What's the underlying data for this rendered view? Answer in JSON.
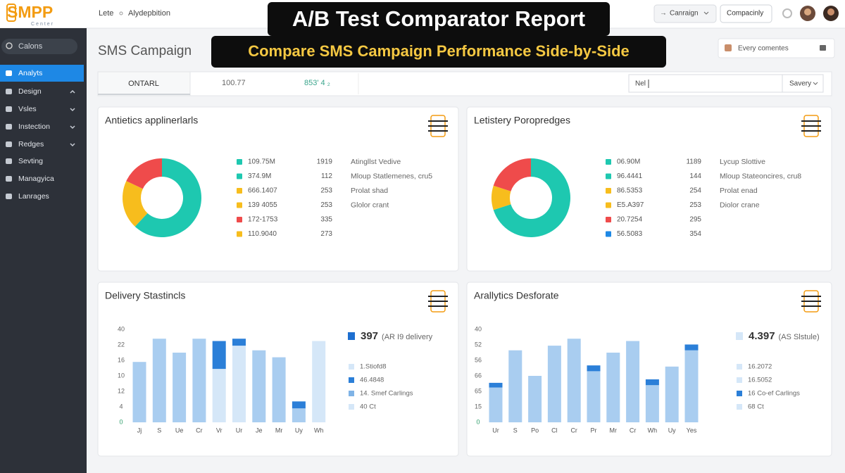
{
  "header": {
    "logo": "SMPP",
    "logo_sub": "Center",
    "breadcrumb": [
      "Lete",
      "Alydepbition"
    ],
    "buttons": [
      "Canraign",
      "Compacinly"
    ]
  },
  "banner": {
    "title": "A/B Test Comparator Report",
    "subtitle": "Compare SMS Campaign Performance Side-by-Side"
  },
  "sidebar": {
    "search": "Calons",
    "items": [
      "Analyts",
      "Design",
      "Vsles",
      "Instection",
      "Redges",
      "Sevting",
      "Managyica",
      "Lanrages"
    ]
  },
  "page": {
    "title": "SMS Campaign",
    "notice": "Every comentes"
  },
  "tabs": {
    "active": "ONTARL",
    "values": [
      "100.77",
      "853' 4 ₂"
    ],
    "input": "Nel",
    "select": "Savery"
  },
  "panels": [
    {
      "title": "Antietics applinerlarls",
      "chart": {
        "type": "donut",
        "values": [
          62,
          20,
          18
        ],
        "colors": [
          "#1ec8b0",
          "#f7bd1d",
          "#ef4b4b"
        ]
      },
      "legend": [
        {
          "color": "#1ec8b0",
          "label": "109.75M",
          "count": "1919"
        },
        {
          "color": "#1ec8b0",
          "label": "374.9M",
          "count": "112"
        },
        {
          "color": "#f7bd1d",
          "label": "666.1407",
          "count": "253"
        },
        {
          "color": "#f7bd1d",
          "label": "139 4055",
          "count": "253"
        },
        {
          "color": "#ef4b4b",
          "label": "172-1753",
          "count": "335"
        },
        {
          "color": "#f7bd1d",
          "label": "110.9040",
          "count": "273"
        }
      ],
      "notes": [
        "Atingllst Vedive",
        "Mloup Statlemenes, cru5",
        "Prolat shad",
        "Glolor crant"
      ]
    },
    {
      "title": "Letistery Poropredges",
      "chart": {
        "type": "donut",
        "values": [
          70,
          10,
          20
        ],
        "colors": [
          "#1ec8b0",
          "#f7bd1d",
          "#ef4b4b"
        ]
      },
      "legend": [
        {
          "color": "#1ec8b0",
          "label": "06.90M",
          "count": "1189"
        },
        {
          "color": "#1ec8b0",
          "label": "96.4441",
          "count": "144"
        },
        {
          "color": "#f7bd1d",
          "label": "86.5353",
          "count": "254"
        },
        {
          "color": "#f7bd1d",
          "label": "E5.A397",
          "count": "253"
        },
        {
          "color": "#ef4b4b",
          "label": "20.7254",
          "count": "295"
        },
        {
          "color": "#1e88e5",
          "label": "56.5083",
          "count": "354"
        }
      ],
      "notes": [
        "Lycup Slottive",
        "Mloup Stateoncires, cru8",
        "Prolat enad",
        "Diolor crane"
      ]
    },
    {
      "title": "Delivery Stastincls",
      "chart": {
        "type": "bar",
        "ylim": [
          0,
          40
        ],
        "y_labels": [
          "40",
          "22",
          "16",
          "10",
          "12",
          "4",
          "0"
        ],
        "categories": [
          "Jj",
          "S",
          "Ue",
          "Cr",
          "Vr",
          "Ur",
          "Je",
          "Mr",
          "Uy",
          "Wh"
        ],
        "series": [
          {
            "color": "#a9cdf0",
            "values": [
              26,
              36,
              30,
              36,
              null,
              null,
              31,
              28,
              6,
              null
            ]
          },
          {
            "color": "#d5e7f8",
            "values": [
              null,
              null,
              null,
              null,
              23,
              33,
              null,
              null,
              null,
              35
            ]
          },
          {
            "color": "#2b7fd8",
            "values": [
              null,
              null,
              null,
              null,
              12,
              3,
              null,
              null,
              3,
              null
            ]
          }
        ]
      },
      "summary": {
        "value": "397",
        "label": "(AR I9 delivery"
      },
      "legend": [
        {
          "color": "#d5e7f8",
          "label": "1.Stiofd8"
        },
        {
          "color": "#2b7fd8",
          "label": "46.4848"
        },
        {
          "color": "#7fb3e6",
          "label": "14. Smef Carlings"
        },
        {
          "color": "#d5e7f8",
          "label": "40 Ct"
        }
      ]
    },
    {
      "title": "Arallytics Desforate",
      "chart": {
        "type": "bar",
        "ylim": [
          0,
          40
        ],
        "y_labels": [
          "40",
          "52",
          "56",
          "66",
          "65",
          "15",
          "0"
        ],
        "categories": [
          "Ur",
          "S",
          "Po",
          "Cl",
          "Cr",
          "Pr",
          "Mr",
          "Cr",
          "Wh",
          "Uy",
          "Yes"
        ],
        "series": [
          {
            "color": "#a9cdf0",
            "values": [
              15,
              31,
              20,
              33,
              36,
              22,
              30,
              35,
              16,
              24,
              31
            ]
          },
          {
            "color": "#2b7fd8",
            "values": [
              2,
              null,
              null,
              null,
              null,
              2.5,
              null,
              null,
              2.5,
              null,
              2.5
            ]
          }
        ]
      },
      "summary": {
        "value": "4.397",
        "label": "(AS Slstule)"
      },
      "legend": [
        {
          "color": "#d5e7f8",
          "label": "16.2072"
        },
        {
          "color": "#d5e7f8",
          "label": "16.5052"
        },
        {
          "color": "#2b7fd8",
          "label": "16 Co-ef Carlings"
        },
        {
          "color": "#d5e7f8",
          "label": "68 Ct"
        }
      ]
    }
  ]
}
